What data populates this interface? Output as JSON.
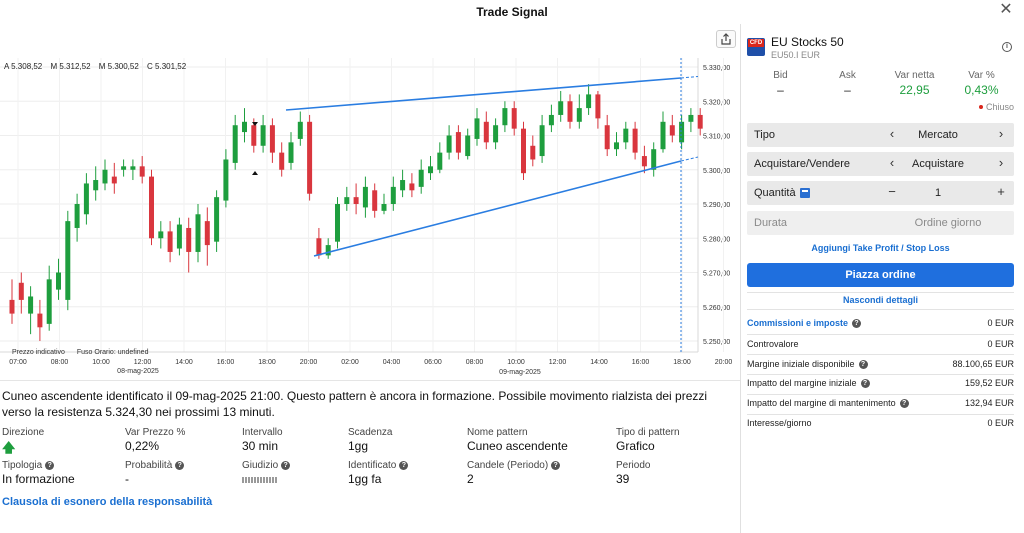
{
  "window": {
    "title": "Trade Signal"
  },
  "chart": {
    "ohlc": {
      "a": "A 5.308,52",
      "m": "M 5.312,52",
      "mi": "M 5.300,52",
      "c": "C 5.301,52"
    },
    "price_ticks": [
      "5.330,00",
      "5.320,00",
      "5.310,00",
      "5.300,00",
      "5.290,00",
      "5.280,00",
      "5.270,00",
      "5.260,00",
      "5.250,00"
    ],
    "time_ticks": [
      "07:00",
      "08:00",
      "10:00",
      "12:00",
      "14:00",
      "16:00",
      "18:00",
      "20:00",
      "02:00",
      "04:00",
      "06:00",
      "08:00",
      "10:00",
      "12:00",
      "14:00",
      "16:00",
      "18:00",
      "20:00"
    ],
    "date_labels": [
      "08-mag-2025",
      "09-mag-2025"
    ],
    "footer": {
      "indicative": "Prezzo indicativo",
      "timezone": "Fuso Orario: undefined"
    },
    "colors": {
      "up": "#1e9e3e",
      "down": "#d9363e",
      "trend": "#2a7de1"
    }
  },
  "signal": {
    "description": "Cuneo ascendente identificato il 09-mag-2025 21:00. Questo pattern è ancora in formazione. Possibile movimento rialzista dei prezzi verso la resistenza 5.324,30 nei prossimi 13 minuti.",
    "details": [
      {
        "label": "Direzione",
        "value": ""
      },
      {
        "label": "Var Prezzo %",
        "value": "0,22%"
      },
      {
        "label": "Intervallo",
        "value": "30 min"
      },
      {
        "label": "Scadenza",
        "value": "1gg"
      },
      {
        "label": "Nome pattern",
        "value": "Cuneo ascendente"
      },
      {
        "label": "Tipo di pattern",
        "value": "Grafico"
      },
      {
        "label": "Tipologia",
        "value": "In formazione"
      },
      {
        "label": "Probabilità",
        "value": "-"
      },
      {
        "label": "Giudizio",
        "value": ""
      },
      {
        "label": "Identificato",
        "value": "1gg fa"
      },
      {
        "label": "Candele (Periodo)",
        "value": "2"
      },
      {
        "label": "Periodo",
        "value": "39"
      }
    ],
    "disclaimer": "Clausola di esonero della responsabilità"
  },
  "instrument": {
    "badge": "CFD",
    "name": "EU Stocks 50",
    "code": "EU50.I EUR",
    "quote": {
      "bid_label": "Bid",
      "bid": "–",
      "ask_label": "Ask",
      "ask": "–",
      "change_label": "Var netta",
      "change": "22,95",
      "pct_label": "Var %",
      "pct": "0,43%"
    },
    "status": "Chiuso"
  },
  "order": {
    "type_label": "Tipo",
    "type_value": "Mercato",
    "side_label": "Acquistare/Vendere",
    "side_value": "Acquistare",
    "qty_label": "Quantità",
    "qty_value": "1",
    "duration_label": "Durata",
    "duration_value": "Ordine giorno",
    "tp_sl_link": "Aggiungi Take Profit / Stop Loss",
    "place_button": "Piazza ordine",
    "hide_details": "Nascondi dettagli"
  },
  "fees": [
    {
      "label": "Commissioni e imposte",
      "value": "0 EUR"
    },
    {
      "label": "Controvalore",
      "value": "0 EUR"
    },
    {
      "label": "Margine iniziale disponibile",
      "value": "88.100,65 EUR"
    },
    {
      "label": "Impatto del margine iniziale",
      "value": "159,52 EUR"
    },
    {
      "label": "Impatto del margine di mantenimento",
      "value": "132,94 EUR"
    },
    {
      "label": "Interesse/giorno",
      "value": "0 EUR"
    }
  ]
}
